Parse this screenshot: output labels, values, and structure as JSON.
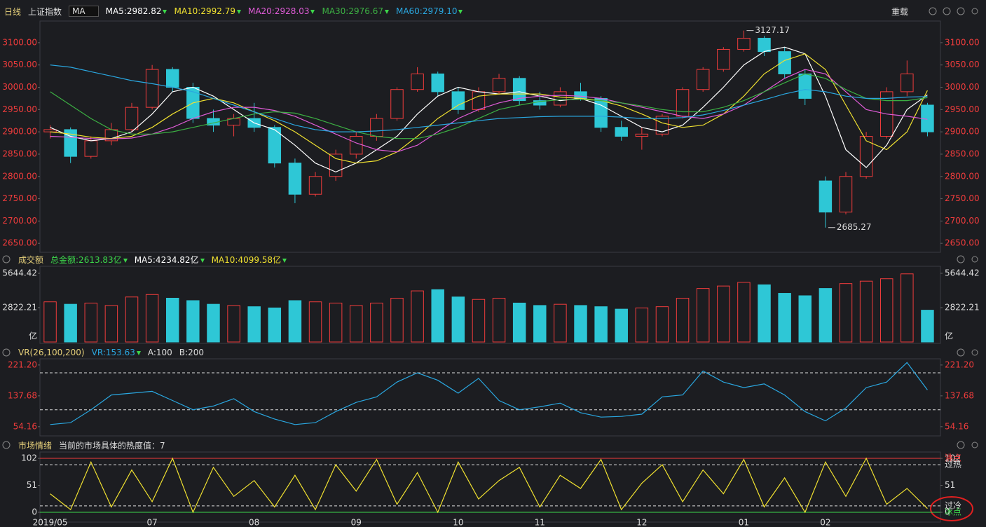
{
  "toolbar": {
    "period": "日线",
    "symbol": "上证指数",
    "indicator": "MA",
    "reload": "重载"
  },
  "chart_data": [
    {
      "type": "candlestick",
      "up_color": "#f03c3c",
      "down_color": "#2ec7d6",
      "tick_color": "#f03c3c",
      "open": [
        2900,
        2905,
        2845,
        2880,
        2905,
        2955,
        3040,
        3000,
        2930,
        2915,
        2930,
        2910,
        2830,
        2760,
        2800,
        2850,
        2890,
        2930,
        2995,
        3030,
        2990,
        2950,
        2990,
        3020,
        2970,
        2960,
        2990,
        2975,
        2910,
        2890,
        2895,
        2935,
        2995,
        3040,
        3085,
        3110,
        3080,
        3030,
        2790,
        2720,
        2800,
        2890,
        2990,
        2960
      ],
      "high": [
        2915,
        2910,
        2890,
        2920,
        2965,
        3050,
        3045,
        3010,
        2950,
        2940,
        2965,
        2915,
        2840,
        2810,
        2860,
        2900,
        2940,
        3000,
        3045,
        3035,
        3000,
        3000,
        3030,
        3025,
        2990,
        3000,
        3010,
        2980,
        2925,
        2910,
        2940,
        3000,
        3045,
        3090,
        3127.17,
        3115,
        3090,
        3040,
        2800,
        2810,
        2900,
        3000,
        3060,
        2965
      ],
      "low": [
        2885,
        2830,
        2840,
        2870,
        2900,
        2950,
        2990,
        2920,
        2900,
        2890,
        2900,
        2820,
        2740,
        2755,
        2790,
        2840,
        2880,
        2925,
        2990,
        2980,
        2940,
        2945,
        2985,
        2960,
        2950,
        2955,
        2970,
        2900,
        2880,
        2860,
        2890,
        2930,
        2990,
        3035,
        3080,
        3070,
        3020,
        2960,
        2685.27,
        2715,
        2795,
        2885,
        2980,
        2890
      ],
      "close": [
        2905,
        2845,
        2880,
        2905,
        2955,
        3040,
        3000,
        2930,
        2915,
        2930,
        2910,
        2830,
        2760,
        2800,
        2850,
        2890,
        2930,
        2995,
        3030,
        2990,
        2950,
        2990,
        3020,
        2970,
        2960,
        2990,
        2975,
        2910,
        2890,
        2895,
        2935,
        2995,
        3040,
        3085,
        3110,
        3080,
        3030,
        2975,
        2720,
        2800,
        2890,
        2990,
        3030,
        2900
      ],
      "series": [
        {
          "name": "MA5:2982.82",
          "color": "#ffffff",
          "values": [
            2910,
            2890,
            2880,
            2885,
            2900,
            2940,
            2990,
            3000,
            2980,
            2950,
            2920,
            2905,
            2870,
            2830,
            2810,
            2830,
            2860,
            2890,
            2940,
            2980,
            3000,
            2990,
            2985,
            2990,
            2980,
            2970,
            2975,
            2960,
            2935,
            2910,
            2900,
            2915,
            2955,
            3000,
            3050,
            3080,
            3090,
            3075,
            2980,
            2860,
            2820,
            2870,
            2950,
            2982.82
          ]
        },
        {
          "name": "MA10:2992.79",
          "color": "#f0e130",
          "values": [
            2900,
            2895,
            2888,
            2885,
            2890,
            2910,
            2940,
            2965,
            2975,
            2965,
            2945,
            2925,
            2900,
            2870,
            2840,
            2830,
            2835,
            2855,
            2890,
            2930,
            2960,
            2980,
            2985,
            2985,
            2985,
            2978,
            2975,
            2970,
            2958,
            2940,
            2920,
            2910,
            2915,
            2940,
            2980,
            3030,
            3060,
            3075,
            3040,
            2960,
            2880,
            2860,
            2900,
            2992.79
          ]
        },
        {
          "name": "MA20:2928.03",
          "color": "#e05cd8",
          "values": [
            2890,
            2888,
            2885,
            2884,
            2886,
            2895,
            2910,
            2930,
            2945,
            2955,
            2955,
            2948,
            2935,
            2915,
            2895,
            2875,
            2860,
            2855,
            2870,
            2900,
            2930,
            2950,
            2965,
            2975,
            2980,
            2982,
            2980,
            2975,
            2965,
            2955,
            2945,
            2935,
            2930,
            2940,
            2960,
            2990,
            3020,
            3040,
            3030,
            2990,
            2950,
            2940,
            2935,
            2928.03
          ]
        },
        {
          "name": "MA30:2976.67",
          "color": "#3cb043",
          "values": [
            2990,
            2960,
            2930,
            2905,
            2895,
            2895,
            2900,
            2910,
            2920,
            2930,
            2940,
            2945,
            2942,
            2930,
            2915,
            2900,
            2890,
            2885,
            2885,
            2895,
            2910,
            2930,
            2950,
            2960,
            2968,
            2972,
            2973,
            2970,
            2965,
            2958,
            2950,
            2945,
            2945,
            2955,
            2970,
            2990,
            3010,
            3030,
            3020,
            2995,
            2975,
            2970,
            2970,
            2976.67
          ]
        },
        {
          "name": "MA60:2979.10",
          "color": "#2aa7e0",
          "values": [
            3050,
            3045,
            3035,
            3025,
            3015,
            3008,
            3000,
            2990,
            2975,
            2960,
            2945,
            2930,
            2915,
            2905,
            2900,
            2900,
            2902,
            2905,
            2910,
            2915,
            2920,
            2925,
            2930,
            2932,
            2934,
            2935,
            2935,
            2935,
            2933,
            2930,
            2930,
            2932,
            2938,
            2948,
            2960,
            2972,
            2985,
            2995,
            2990,
            2980,
            2975,
            2975,
            2978,
            2979.1
          ]
        }
      ],
      "annotations": [
        "3127.17",
        "2685.27"
      ],
      "ylim": [
        2633,
        3136
      ],
      "yticks": [
        {
          "value": 2650,
          "label": "2650.00"
        },
        {
          "value": 2700,
          "label": "2700.00"
        },
        {
          "value": 2750,
          "label": "2750.00"
        },
        {
          "value": 2800,
          "label": "2800.00"
        },
        {
          "value": 2850,
          "label": "2850.00"
        },
        {
          "value": 2900,
          "label": "2900.00"
        },
        {
          "value": 2950,
          "label": "2950.00"
        },
        {
          "value": 3000,
          "label": "3000.00"
        },
        {
          "value": 3050,
          "label": "3050.00"
        },
        {
          "value": 3100,
          "label": "3100.00"
        }
      ]
    },
    {
      "type": "bar",
      "title": "成交额",
      "tick_color": "#dddddd",
      "legend": [
        {
          "label": "总金额:2613.83亿",
          "color": "#3cd64a"
        },
        {
          "label": "MA5:4234.82亿",
          "color": "#ffffff"
        },
        {
          "label": "MA10:4099.58亿",
          "color": "#f0e130"
        }
      ],
      "values": [
        3300,
        3100,
        3200,
        3000,
        3700,
        3900,
        3600,
        3400,
        3100,
        3000,
        2900,
        2800,
        3400,
        3300,
        3200,
        3000,
        3200,
        3600,
        4200,
        4300,
        3700,
        3500,
        3600,
        3200,
        3000,
        3100,
        3000,
        2900,
        2700,
        2800,
        2900,
        3600,
        4400,
        4600,
        4900,
        4700,
        4000,
        3800,
        4400,
        4800,
        5000,
        5200,
        5600,
        2613.83
      ],
      "unit": "亿",
      "ylim": [
        0,
        6221
      ],
      "yticks": [
        2822.21,
        5644.42
      ]
    },
    {
      "type": "line",
      "title": "VR(26,100,200)",
      "tick_color": "#f03c3c",
      "series": [
        {
          "name": "VR:153.63",
          "color": "#2aa7e0",
          "values": [
            60,
            65,
            100,
            140,
            145,
            150,
            125,
            100,
            110,
            130,
            95,
            75,
            60,
            65,
            95,
            120,
            135,
            175,
            200,
            180,
            145,
            185,
            125,
            100,
            108,
            118,
            92,
            80,
            82,
            88,
            135,
            140,
            205,
            175,
            160,
            170,
            140,
            95,
            70,
            105,
            160,
            175,
            228,
            153.63
          ]
        }
      ],
      "reference_lines": [
        {
          "value": 100,
          "label": "A:100",
          "color": "#dddddd",
          "dash": true
        },
        {
          "value": 200,
          "label": "B:200",
          "color": "#dddddd",
          "dash": true
        }
      ],
      "ylim": [
        33,
        238
      ],
      "yticks": [
        54.16,
        137.68,
        {
          "value": 221.2,
          "label": "221.20"
        }
      ]
    },
    {
      "type": "line",
      "title": "市场情绪",
      "subtitle": "当前的市场具体的热度值：7",
      "tick_color": "#dddddd",
      "series": [
        {
          "color": "#f0e130",
          "values": [
            35,
            5,
            95,
            10,
            80,
            20,
            102,
            0,
            85,
            30,
            60,
            10,
            70,
            5,
            90,
            40,
            100,
            15,
            75,
            0,
            95,
            25,
            60,
            85,
            10,
            70,
            45,
            100,
            5,
            55,
            90,
            20,
            80,
            35,
            100,
            10,
            65,
            0,
            95,
            30,
            102,
            15,
            45,
            7
          ]
        }
      ],
      "reference_lines": [
        {
          "value": 102,
          "label": "沸点",
          "color": "#f03c3c",
          "dash": false
        },
        {
          "value": 90,
          "label": "过热",
          "color": "#dddddd",
          "dash": true
        },
        {
          "value": 12,
          "label": "过冷",
          "color": "#dddddd",
          "dash": true
        },
        {
          "value": 0,
          "label": "冰点",
          "color": "#3cd64a",
          "dash": false
        }
      ],
      "ylim": [
        -12,
        114
      ],
      "yticks": [
        0,
        51,
        102
      ],
      "categories": [
        "2019/05",
        null,
        null,
        null,
        null,
        "07",
        null,
        null,
        null,
        null,
        "08",
        null,
        null,
        null,
        null,
        "09",
        null,
        null,
        null,
        null,
        "10",
        null,
        null,
        null,
        "11",
        null,
        null,
        null,
        null,
        "12",
        null,
        null,
        null,
        null,
        "01",
        null,
        null,
        null,
        "02",
        null,
        null,
        null,
        null,
        null
      ]
    }
  ]
}
